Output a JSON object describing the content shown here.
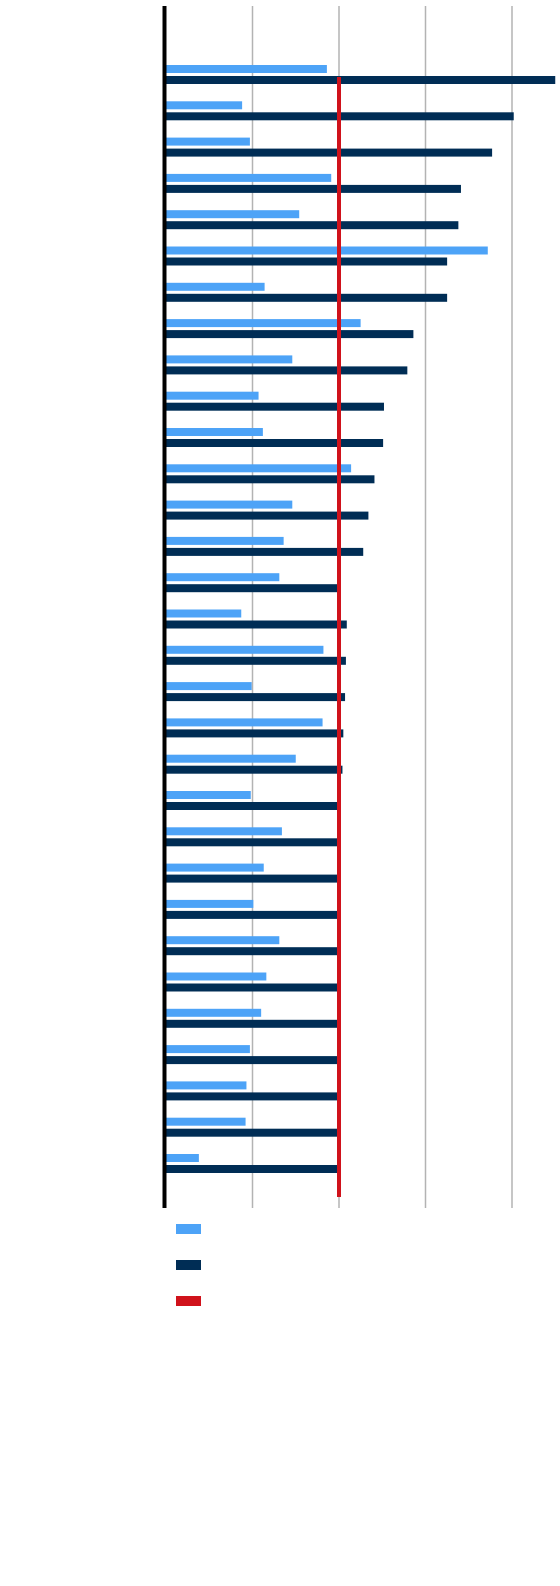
{
  "chart_data": {
    "type": "bar",
    "orientation": "horizontal",
    "title": "",
    "xlabel": "",
    "ylabel": "",
    "categories": [
      "",
      "",
      "",
      "",
      "",
      "",
      "",
      "",
      "",
      "",
      "",
      "",
      "",
      "",
      "",
      "",
      "",
      "",
      "",
      "",
      "",
      "",
      "",
      "",
      "",
      "",
      "",
      "",
      "",
      "",
      "",
      ""
    ],
    "xlim": [
      0,
      4.5
    ],
    "grid": true,
    "legend_position": "bottom-left",
    "reference_line": {
      "value": 2.0,
      "color": "#d0121b"
    },
    "series": [
      {
        "color": "#4da3f7",
        "values": [
          1.86,
          0.88,
          0.97,
          1.91,
          1.54,
          3.72,
          1.14,
          2.25,
          1.46,
          1.07,
          1.12,
          2.14,
          1.46,
          1.36,
          1.31,
          0.87,
          1.82,
          0.99,
          1.81,
          1.5,
          0.98,
          1.34,
          1.13,
          1.01,
          1.31,
          1.16,
          1.1,
          0.97,
          0.93,
          0.92,
          0.38,
          0.0
        ]
      },
      {
        "color": "#002d55",
        "values": [
          4.5,
          4.02,
          3.77,
          3.41,
          3.38,
          3.25,
          3.25,
          2.86,
          2.79,
          2.52,
          2.51,
          2.41,
          2.34,
          2.28,
          2.0,
          2.09,
          2.08,
          2.07,
          2.05,
          2.04,
          2.01,
          2.0,
          2.0,
          2.0,
          2.0,
          2.0,
          2.0,
          2.0,
          2.0,
          2.0,
          2.0,
          0.0
        ]
      }
    ],
    "legend": [
      {
        "marker": "series-1",
        "color": "#4da3f7"
      },
      {
        "marker": "series-2",
        "color": "#002d55"
      },
      {
        "marker": "reference",
        "color": "#d0121b"
      }
    ]
  }
}
